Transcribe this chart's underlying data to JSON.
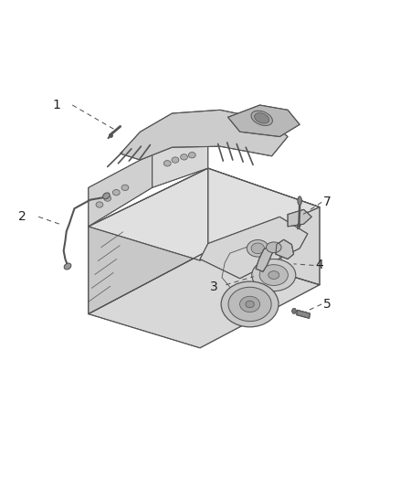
{
  "background_color": "#ffffff",
  "figsize": [
    4.38,
    5.33
  ],
  "dpi": 100,
  "engine_line_color": "#555555",
  "engine_fill_color": "#e8e8e8",
  "callout_color": "#222222",
  "callout_font_size": 10,
  "leader_line_color": "#555555",
  "callouts": [
    {
      "number": "1",
      "nx": 0.14,
      "ny": 0.785,
      "points": [
        [
          0.18,
          0.785
        ],
        [
          0.285,
          0.735
        ]
      ]
    },
    {
      "number": "2",
      "nx": 0.055,
      "ny": 0.555,
      "points": [
        [
          0.095,
          0.555
        ],
        [
          0.155,
          0.538
        ]
      ]
    },
    {
      "number": "3",
      "nx": 0.535,
      "ny": 0.41,
      "points": [
        [
          0.565,
          0.415
        ],
        [
          0.635,
          0.432
        ]
      ]
    },
    {
      "number": "4",
      "nx": 0.8,
      "ny": 0.455,
      "points": [
        [
          0.785,
          0.455
        ],
        [
          0.735,
          0.458
        ]
      ]
    },
    {
      "number": "5",
      "nx": 0.82,
      "ny": 0.375,
      "points": [
        [
          0.805,
          0.375
        ],
        [
          0.765,
          0.36
        ]
      ]
    },
    {
      "number": "7",
      "nx": 0.82,
      "ny": 0.585,
      "points": [
        [
          0.805,
          0.585
        ],
        [
          0.755,
          0.558
        ]
      ]
    }
  ]
}
